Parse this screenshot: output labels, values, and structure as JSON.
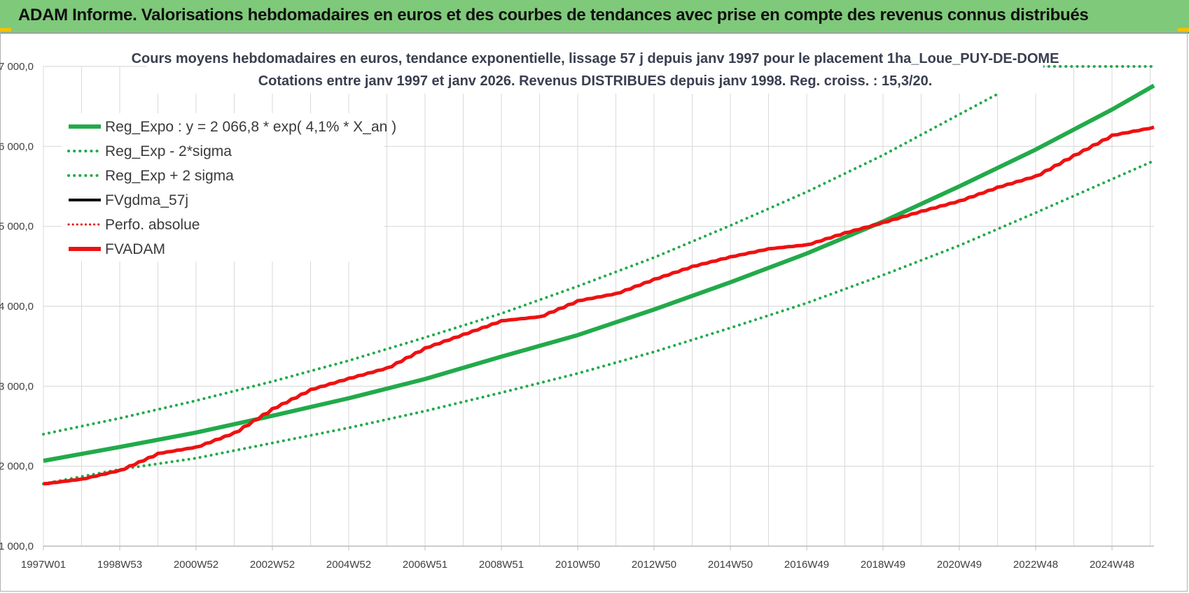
{
  "banner": {
    "title": "ADAM Informe. Valorisations hebdomadaires en euros et des courbes de tendances avec prise en compte des revenus connus distribués"
  },
  "colors": {
    "banner_bg": "#7fc97a",
    "trend": "#22aa4a",
    "band": "#22aa4a",
    "fvgdma": "#000000",
    "perfo": "#e00000",
    "fvadam": "#ee1111",
    "grid": "#d9d9d9"
  },
  "chart_data": {
    "type": "line",
    "title_lines": [
      "Cours moyens hebdomadaires en euros, tendance exponentielle, lissage 57 j depuis janv 1997 pour le placement 1ha_Loue_PUY-DE-DOME",
      "Cotations entre janv 1997 et janv 2026. Revenus DISTRIBUES depuis janv 1998.  Reg. croiss. : 15,3/20."
    ],
    "xlabel": "",
    "ylabel": "",
    "ylim": [
      1000,
      7000
    ],
    "xlim": [
      1997.0,
      2026.1
    ],
    "y_ticks": [
      1000,
      2000,
      3000,
      4000,
      5000,
      6000,
      7000
    ],
    "y_tick_labels": [
      "1 000,0",
      "2 000,0",
      "3 000,0",
      "4 000,0",
      "5 000,0",
      "6 000,0",
      "7 000,0"
    ],
    "x_ticks": [
      1997.0,
      1999.0,
      2001.0,
      2003.0,
      2005.0,
      2007.0,
      2009.0,
      2011.0,
      2013.0,
      2015.0,
      2017.0,
      2019.0,
      2021.0,
      2023.0,
      2025.0
    ],
    "x_tick_labels": [
      "1997W01",
      "1998W53",
      "2000W52",
      "2002W52",
      "2004W52",
      "2006W51",
      "2008W51",
      "2010W50",
      "2012W50",
      "2014W50",
      "2016W49",
      "2018W49",
      "2020W49",
      "2022W48",
      "2024W48"
    ],
    "grid": true,
    "legend_position": "top-left",
    "legend": [
      {
        "label": "Reg_Expo : y = 2 066,8 * exp( 4,1% *  X_an )",
        "style": "solid",
        "color": "#22aa4a"
      },
      {
        "label": "Reg_Exp - 2*sigma",
        "style": "dotted",
        "color": "#22aa4a"
      },
      {
        "label": "Reg_Exp + 2 sigma",
        "style": "dotted",
        "color": "#22aa4a"
      },
      {
        "label": "FVgdma_57j",
        "style": "solid",
        "color": "#000000"
      },
      {
        "label": "Perfo. absolue",
        "style": "dotted",
        "color": "#e00000"
      },
      {
        "label": "FVADAM",
        "style": "solid",
        "color": "#ee1111"
      }
    ],
    "series": [
      {
        "name": "Reg_Expo : y = 2 066,8 * exp( 4,1% *  X_an )",
        "x": [
          1997.0,
          1999.0,
          2001.0,
          2003.0,
          2005.0,
          2007.0,
          2009.0,
          2011.0,
          2013.0,
          2015.0,
          2017.0,
          2019.0,
          2021.0,
          2023.0,
          2025.0,
          2026.1
        ],
        "y": [
          2067,
          2240,
          2420,
          2630,
          2850,
          3090,
          3370,
          3640,
          3960,
          4300,
          4660,
          5060,
          5500,
          5960,
          6460,
          6760
        ]
      },
      {
        "name": "Reg_Exp - 2*sigma",
        "x": [
          1997.0,
          1999.0,
          2001.0,
          2003.0,
          2005.0,
          2007.0,
          2009.0,
          2011.0,
          2013.0,
          2015.0,
          2017.0,
          2019.0,
          2021.0,
          2023.0,
          2025.0,
          2026.1
        ],
        "y": [
          1780,
          1960,
          2100,
          2290,
          2480,
          2690,
          2920,
          3160,
          3430,
          3730,
          4040,
          4390,
          4760,
          5170,
          5590,
          5820
        ]
      },
      {
        "name": "Reg_Exp + 2 sigma",
        "x": [
          1997.0,
          1999.0,
          2001.0,
          2003.0,
          2005.0,
          2007.0,
          2009.0,
          2011.0,
          2013.0,
          2015.0,
          2017.0,
          2019.0,
          2021.0,
          2022.1,
          2023.0,
          2025.0,
          2026.1
        ],
        "y": [
          2400,
          2600,
          2820,
          3060,
          3320,
          3610,
          3910,
          4250,
          4610,
          5010,
          5430,
          5890,
          6400,
          6680,
          7000,
          7000,
          7000
        ]
      },
      {
        "name": "FVgdma_57j",
        "x": [
          1997.0,
          1998.0,
          1999.0,
          2000.0,
          2001.0,
          2002.0,
          2003.0,
          2004.0,
          2005.0,
          2006.0,
          2007.0,
          2008.0,
          2009.0,
          2010.0,
          2011.0,
          2012.0,
          2013.0,
          2014.0,
          2015.0,
          2016.0,
          2017.0,
          2018.0,
          2019.0,
          2020.0,
          2021.0,
          2022.0,
          2023.0,
          2024.0,
          2025.0,
          2026.1
        ],
        "y": [
          1780,
          1840,
          1950,
          2160,
          2240,
          2420,
          2720,
          2960,
          3100,
          3230,
          3480,
          3650,
          3820,
          3870,
          4070,
          4160,
          4340,
          4500,
          4620,
          4720,
          4770,
          4920,
          5050,
          5190,
          5320,
          5490,
          5630,
          5890,
          6140,
          6240
        ]
      },
      {
        "name": "FVADAM",
        "x": [
          1997.0,
          1998.0,
          1999.0,
          2000.0,
          2001.0,
          2002.0,
          2003.0,
          2004.0,
          2005.0,
          2006.0,
          2007.0,
          2008.0,
          2009.0,
          2010.0,
          2011.0,
          2012.0,
          2013.0,
          2014.0,
          2015.0,
          2016.0,
          2017.0,
          2018.0,
          2019.0,
          2020.0,
          2021.0,
          2022.0,
          2023.0,
          2024.0,
          2025.0,
          2026.1
        ],
        "y": [
          1780,
          1840,
          1950,
          2160,
          2240,
          2420,
          2720,
          2960,
          3100,
          3230,
          3480,
          3650,
          3820,
          3870,
          4070,
          4160,
          4340,
          4500,
          4620,
          4720,
          4770,
          4920,
          5050,
          5190,
          5320,
          5490,
          5630,
          5890,
          6140,
          6240
        ]
      }
    ]
  }
}
